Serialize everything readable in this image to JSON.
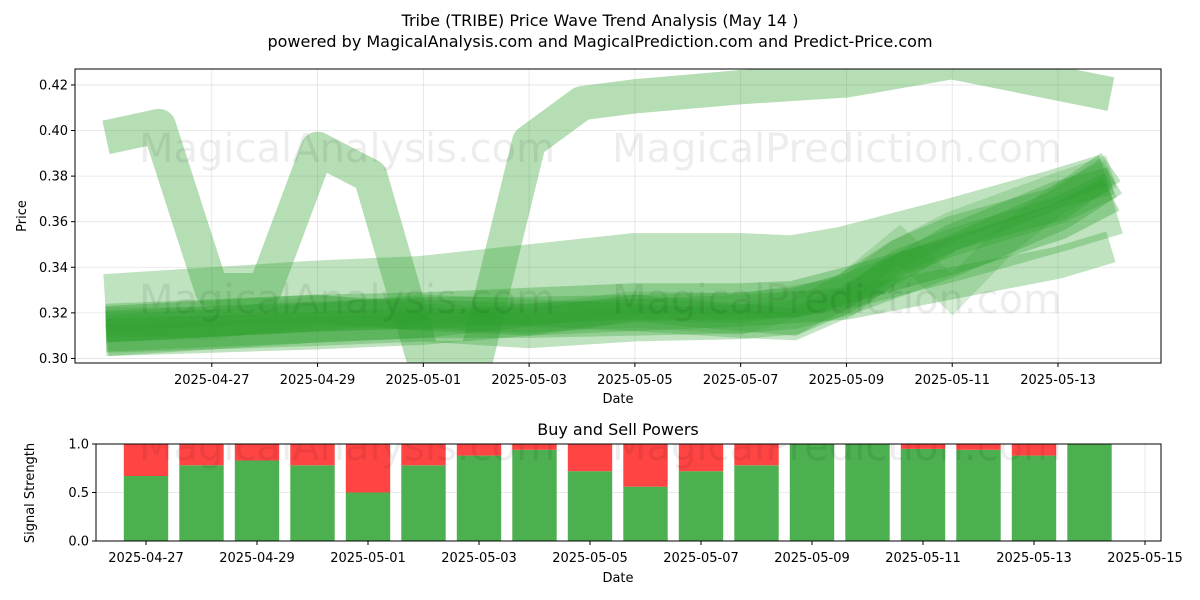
{
  "title": "Tribe (TRIBE) Price Wave Trend Analysis (May 14 )",
  "subtitle": "powered by MagicalAnalysis.com and MagicalPrediction.com and Predict-Price.com",
  "watermarks": [
    "MagicalAnalysis.com",
    "MagicalPrediction.com"
  ],
  "colors": {
    "band": "#2ca02c",
    "buy": "#4caf50",
    "sell": "#ff4444"
  },
  "chart_data": [
    {
      "type": "area",
      "title": "",
      "xlabel": "Date",
      "ylabel": "Price",
      "x_ticks": [
        "2025-04-27",
        "2025-04-29",
        "2025-05-01",
        "2025-05-03",
        "2025-05-05",
        "2025-05-07",
        "2025-05-09",
        "2025-05-11",
        "2025-05-13"
      ],
      "y_ticks": [
        "0.30",
        "0.32",
        "0.34",
        "0.36",
        "0.38",
        "0.40",
        "0.42"
      ],
      "ylim": [
        0.298,
        0.427
      ],
      "xlim": [
        "2025-04-25",
        "2025-05-14"
      ],
      "grid": true,
      "series": [
        {
          "kind": "wide-band",
          "opacity": 0.35,
          "width": 0.015,
          "points": [
            [
              "2025-04-25",
              0.397
            ],
            [
              "2025-04-26",
              0.402
            ],
            [
              "2025-04-27",
              0.33
            ],
            [
              "2025-04-28",
              0.33
            ],
            [
              "2025-04-29",
              0.392
            ],
            [
              "2025-04-30",
              0.38
            ],
            [
              "2025-05-01",
              0.3
            ],
            [
              "2025-05-02",
              0.3
            ],
            [
              "2025-05-03",
              0.395
            ],
            [
              "2025-05-04",
              0.412
            ],
            [
              "2025-05-05",
              0.415
            ],
            [
              "2025-05-07",
              0.419
            ],
            [
              "2025-05-09",
              0.422
            ],
            [
              "2025-05-11",
              0.43
            ],
            [
              "2025-05-14",
              0.416
            ]
          ]
        },
        {
          "kind": "band",
          "opacity": 0.3,
          "width": 0.036,
          "points": [
            [
              "2025-04-25",
              0.319
            ],
            [
              "2025-04-29",
              0.325
            ],
            [
              "2025-05-01",
              0.327
            ],
            [
              "2025-05-03",
              0.332
            ],
            [
              "2025-05-05",
              0.337
            ],
            [
              "2025-05-07",
              0.337
            ],
            [
              "2025-05-08",
              0.336
            ],
            [
              "2025-05-09",
              0.34
            ],
            [
              "2025-05-11",
              0.352
            ],
            [
              "2025-05-13",
              0.365
            ],
            [
              "2025-05-14",
              0.372
            ]
          ]
        },
        {
          "kind": "band",
          "opacity": 0.35,
          "width": 0.016,
          "points": [
            [
              "2025-04-25",
              0.315
            ],
            [
              "2025-04-29",
              0.32
            ],
            [
              "2025-05-01",
              0.321
            ],
            [
              "2025-05-03",
              0.323
            ],
            [
              "2025-05-05",
              0.325
            ],
            [
              "2025-05-07",
              0.325
            ],
            [
              "2025-05-08",
              0.326
            ],
            [
              "2025-05-09",
              0.332
            ],
            [
              "2025-05-11",
              0.345
            ],
            [
              "2025-05-13",
              0.36
            ],
            [
              "2025-05-14",
              0.372
            ]
          ]
        },
        {
          "kind": "band",
          "opacity": 0.3,
          "width": 0.018,
          "points": [
            [
              "2025-04-25",
              0.312
            ],
            [
              "2025-04-29",
              0.316
            ],
            [
              "2025-05-01",
              0.318
            ],
            [
              "2025-05-03",
              0.318
            ],
            [
              "2025-05-05",
              0.319
            ],
            [
              "2025-05-07",
              0.32
            ],
            [
              "2025-05-08",
              0.322
            ],
            [
              "2025-05-09",
              0.328
            ],
            [
              "2025-05-11",
              0.345
            ],
            [
              "2025-05-13",
              0.365
            ],
            [
              "2025-05-14",
              0.38
            ]
          ]
        },
        {
          "kind": "band",
          "opacity": 0.3,
          "width": 0.015,
          "points": [
            [
              "2025-04-25",
              0.31
            ],
            [
              "2025-04-29",
              0.313
            ],
            [
              "2025-05-01",
              0.315
            ],
            [
              "2025-05-03",
              0.312
            ],
            [
              "2025-05-05",
              0.315
            ],
            [
              "2025-05-07",
              0.316
            ],
            [
              "2025-05-08",
              0.318
            ],
            [
              "2025-05-09",
              0.33
            ],
            [
              "2025-05-10",
              0.345
            ],
            [
              "2025-05-11",
              0.355
            ],
            [
              "2025-05-13",
              0.368
            ],
            [
              "2025-05-14",
              0.384
            ]
          ]
        },
        {
          "kind": "band",
          "opacity": 0.3,
          "width": 0.012,
          "points": [
            [
              "2025-04-25",
              0.318
            ],
            [
              "2025-04-29",
              0.322
            ],
            [
              "2025-05-01",
              0.318
            ],
            [
              "2025-05-03",
              0.316
            ],
            [
              "2025-05-05",
              0.322
            ],
            [
              "2025-05-07",
              0.318
            ],
            [
              "2025-05-08",
              0.316
            ],
            [
              "2025-05-09",
              0.326
            ],
            [
              "2025-05-10",
              0.34
            ],
            [
              "2025-05-11",
              0.353
            ],
            [
              "2025-05-13",
              0.372
            ],
            [
              "2025-05-14",
              0.378
            ]
          ]
        },
        {
          "kind": "band",
          "opacity": 0.28,
          "width": 0.012,
          "points": [
            [
              "2025-04-25",
              0.313
            ],
            [
              "2025-04-29",
              0.318
            ],
            [
              "2025-05-01",
              0.322
            ],
            [
              "2025-05-03",
              0.32
            ],
            [
              "2025-05-05",
              0.318
            ],
            [
              "2025-05-07",
              0.315
            ],
            [
              "2025-05-08",
              0.314
            ],
            [
              "2025-05-09",
              0.324
            ],
            [
              "2025-05-10",
              0.342
            ],
            [
              "2025-05-11",
              0.351
            ],
            [
              "2025-05-13",
              0.365
            ],
            [
              "2025-05-14",
              0.376
            ]
          ]
        },
        {
          "kind": "band",
          "opacity": 0.3,
          "width": 0.014,
          "points": [
            [
              "2025-04-25",
              0.308
            ],
            [
              "2025-04-29",
              0.311
            ],
            [
              "2025-05-01",
              0.313
            ],
            [
              "2025-05-03",
              0.317
            ],
            [
              "2025-05-05",
              0.319
            ],
            [
              "2025-05-07",
              0.321
            ],
            [
              "2025-05-09",
              0.324
            ],
            [
              "2025-05-11",
              0.333
            ],
            [
              "2025-05-13",
              0.342
            ],
            [
              "2025-05-14",
              0.349
            ]
          ]
        },
        {
          "kind": "band",
          "opacity": 0.22,
          "width": 0.013,
          "points": [
            [
              "2025-04-25",
              0.316
            ],
            [
              "2025-04-27",
              0.316
            ],
            [
              "2025-04-29",
              0.318
            ],
            [
              "2025-05-01",
              0.32
            ],
            [
              "2025-05-03",
              0.317
            ],
            [
              "2025-05-05",
              0.323
            ],
            [
              "2025-05-07",
              0.322
            ],
            [
              "2025-05-09",
              0.329
            ],
            [
              "2025-05-10",
              0.346
            ],
            [
              "2025-05-11",
              0.358
            ],
            [
              "2025-05-13",
              0.375
            ],
            [
              "2025-05-14",
              0.383
            ]
          ]
        },
        {
          "kind": "band",
          "opacity": 0.2,
          "width": 0.013,
          "points": [
            [
              "2025-04-25",
              0.314
            ],
            [
              "2025-04-27",
              0.315
            ],
            [
              "2025-04-29",
              0.321
            ],
            [
              "2025-05-01",
              0.319
            ],
            [
              "2025-05-03",
              0.318
            ],
            [
              "2025-05-05",
              0.32
            ],
            [
              "2025-05-07",
              0.317
            ],
            [
              "2025-05-09",
              0.331
            ],
            [
              "2025-05-10",
              0.35
            ],
            [
              "2025-05-11",
              0.328
            ],
            [
              "2025-05-12",
              0.352
            ],
            [
              "2025-05-13",
              0.37
            ],
            [
              "2025-05-14",
              0.381
            ]
          ]
        }
      ]
    },
    {
      "type": "bar",
      "title": "Buy and Sell Powers",
      "xlabel": "Date",
      "ylabel": "Signal Strength",
      "x_ticks": [
        "2025-04-27",
        "2025-04-29",
        "2025-05-01",
        "2025-05-03",
        "2025-05-05",
        "2025-05-07",
        "2025-05-09",
        "2025-05-11",
        "2025-05-13",
        "2025-05-15"
      ],
      "y_ticks": [
        "0.0",
        "0.5",
        "1.0"
      ],
      "ylim": [
        0,
        1
      ],
      "xlim": [
        "2025-04-25",
        "2025-05-15"
      ],
      "grid": true,
      "categories": [
        "2025-04-27",
        "2025-04-28",
        "2025-04-29",
        "2025-04-30",
        "2025-05-01",
        "2025-05-02",
        "2025-05-03",
        "2025-05-04",
        "2025-05-05",
        "2025-05-06",
        "2025-05-07",
        "2025-05-08",
        "2025-05-09",
        "2025-05-10",
        "2025-05-11",
        "2025-05-12",
        "2025-05-13",
        "2025-05-14"
      ],
      "series": [
        {
          "name": "Buy",
          "values": [
            0.67,
            0.78,
            0.83,
            0.78,
            0.5,
            0.78,
            0.88,
            0.94,
            0.72,
            0.56,
            0.72,
            0.78,
            1.0,
            1.0,
            0.95,
            0.94,
            0.88,
            1.0
          ]
        },
        {
          "name": "Sell",
          "values": [
            0.33,
            0.22,
            0.17,
            0.22,
            0.5,
            0.22,
            0.12,
            0.06,
            0.28,
            0.44,
            0.28,
            0.22,
            0.0,
            0.0,
            0.05,
            0.06,
            0.12,
            0.0
          ]
        }
      ]
    }
  ]
}
